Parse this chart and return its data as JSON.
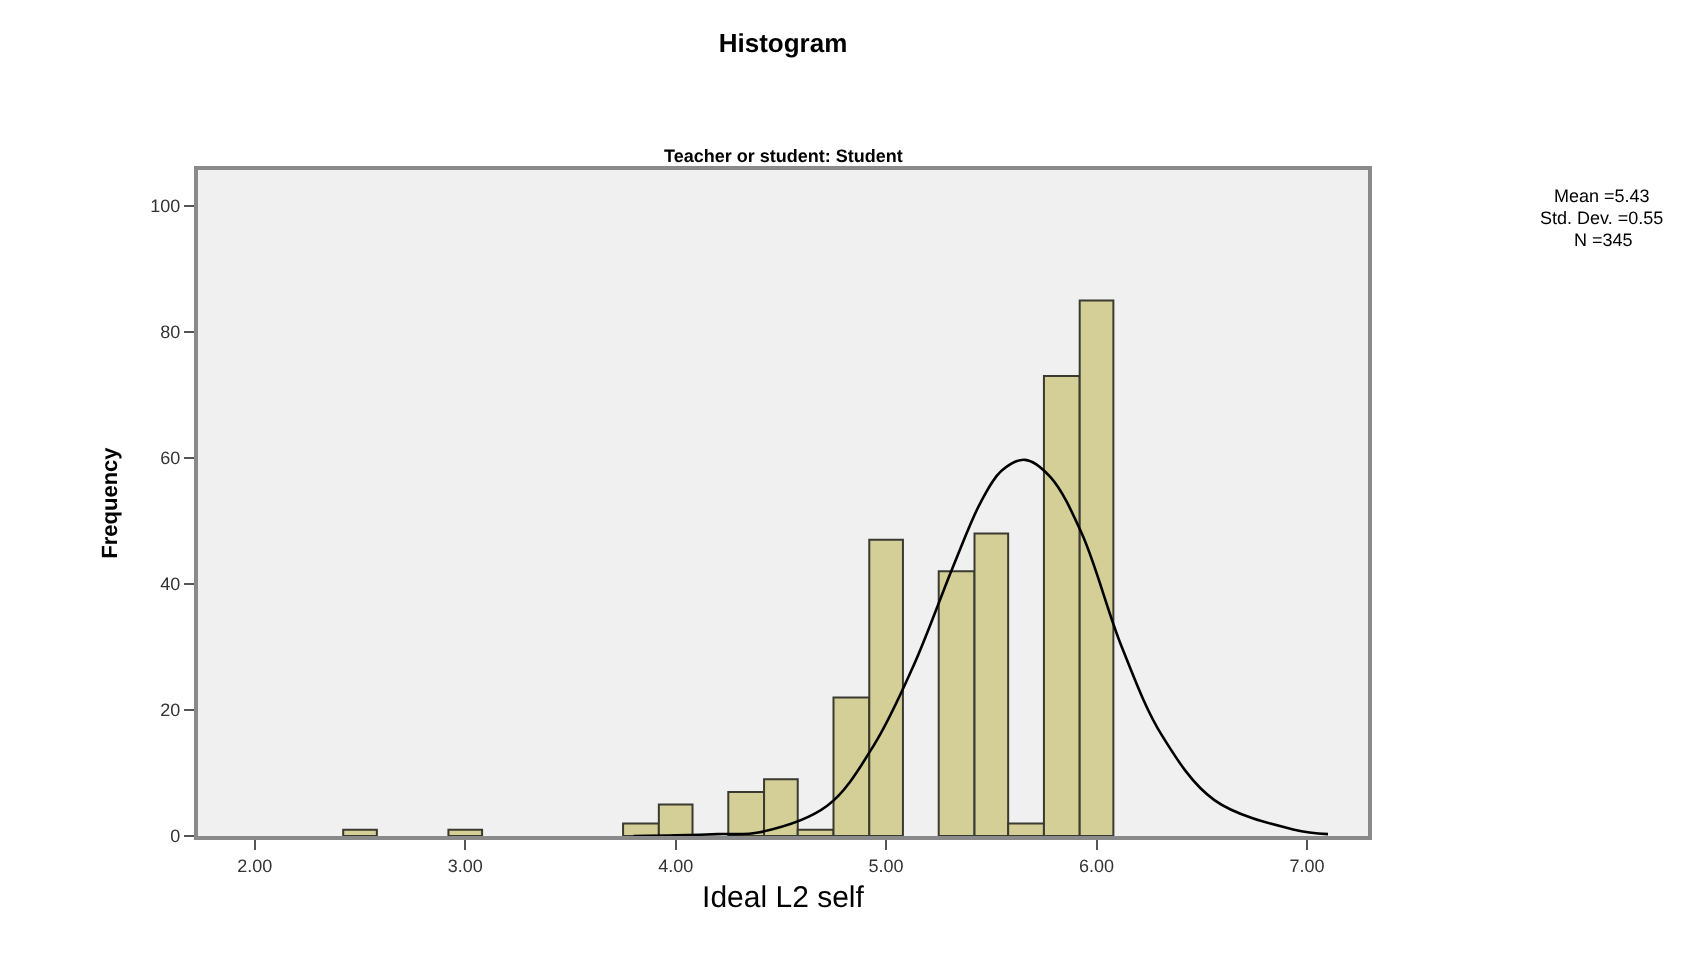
{
  "chart_data": {
    "type": "histogram",
    "title": "Histogram",
    "subtitle": "Teacher or student: Student",
    "xlabel": "Ideal L2 self",
    "ylabel": "Frequency",
    "bins": [
      2.42,
      2.58,
      2.92,
      3.08,
      3.75,
      3.92,
      4.08,
      4.25,
      4.42,
      4.58,
      4.75,
      4.92,
      5.08,
      5.25,
      5.42,
      5.58,
      5.75,
      5.92,
      6.08
    ],
    "values": [
      1,
      0,
      1,
      0,
      2,
      5,
      0,
      7,
      9,
      1,
      22,
      47,
      0,
      42,
      48,
      2,
      73,
      85
    ],
    "color": "#d3cf97",
    "series": [
      {
        "type": "line",
        "color": "#000000",
        "x": [
          3.8,
          4.0,
          4.2,
          4.4,
          4.72,
          4.94,
          5.13,
          5.32,
          5.45,
          5.55,
          5.66,
          5.78,
          5.93,
          6.12,
          6.31,
          6.56,
          6.94,
          7.1
        ],
        "values": [
          0,
          0.1,
          0.3,
          0.6,
          4.8,
          14.3,
          27,
          42.9,
          53,
          58,
          59.7,
          57,
          48,
          30,
          16,
          5.7,
          1,
          0.3
        ]
      }
    ],
    "xlim": [
      1.73,
      7.29
    ],
    "ylim": [
      0,
      105.7
    ],
    "xticks": [
      {
        "value": 2,
        "label": "2.00"
      },
      {
        "value": 3,
        "label": "3.00"
      },
      {
        "value": 4,
        "label": "4.00"
      },
      {
        "value": 5,
        "label": "5.00"
      },
      {
        "value": 6,
        "label": "6.00"
      },
      {
        "value": 7,
        "label": "7.00"
      }
    ],
    "yticks": [
      0,
      20,
      40,
      60,
      80,
      100
    ],
    "annotations": [
      "Mean =5.43",
      "Std. Dev. =0.55",
      "N =345"
    ],
    "grid": false
  }
}
